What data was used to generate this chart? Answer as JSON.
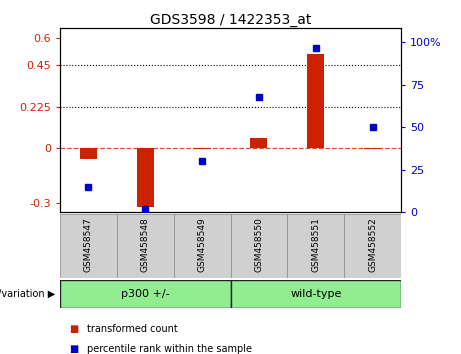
{
  "title": "GDS3598 / 1422353_at",
  "samples": [
    "GSM458547",
    "GSM458548",
    "GSM458549",
    "GSM458550",
    "GSM458551",
    "GSM458552"
  ],
  "transformed_count": [
    -0.06,
    -0.32,
    -0.005,
    0.055,
    0.51,
    -0.005
  ],
  "percentile_rank": [
    15,
    2,
    30,
    68,
    97,
    50
  ],
  "groups": [
    {
      "label": "p300 +/-",
      "start": 0,
      "end": 2,
      "color": "#90EE90"
    },
    {
      "label": "wild-type",
      "start": 3,
      "end": 5,
      "color": "#90EE90"
    }
  ],
  "group_label": "genotype/variation",
  "ylim_left": [
    -0.35,
    0.65
  ],
  "ylim_right": [
    0,
    108.33
  ],
  "yticks_left": [
    -0.3,
    0,
    0.225,
    0.45,
    0.6
  ],
  "yticks_right": [
    0,
    25,
    50,
    75,
    100
  ],
  "hlines": [
    0.225,
    0.45
  ],
  "bar_color": "#CC2200",
  "dot_color": "#0000CC",
  "legend_items": [
    "transformed count",
    "percentile rank within the sample"
  ],
  "sample_box_color": "#d0d0d0",
  "plot_bg": "#ffffff"
}
